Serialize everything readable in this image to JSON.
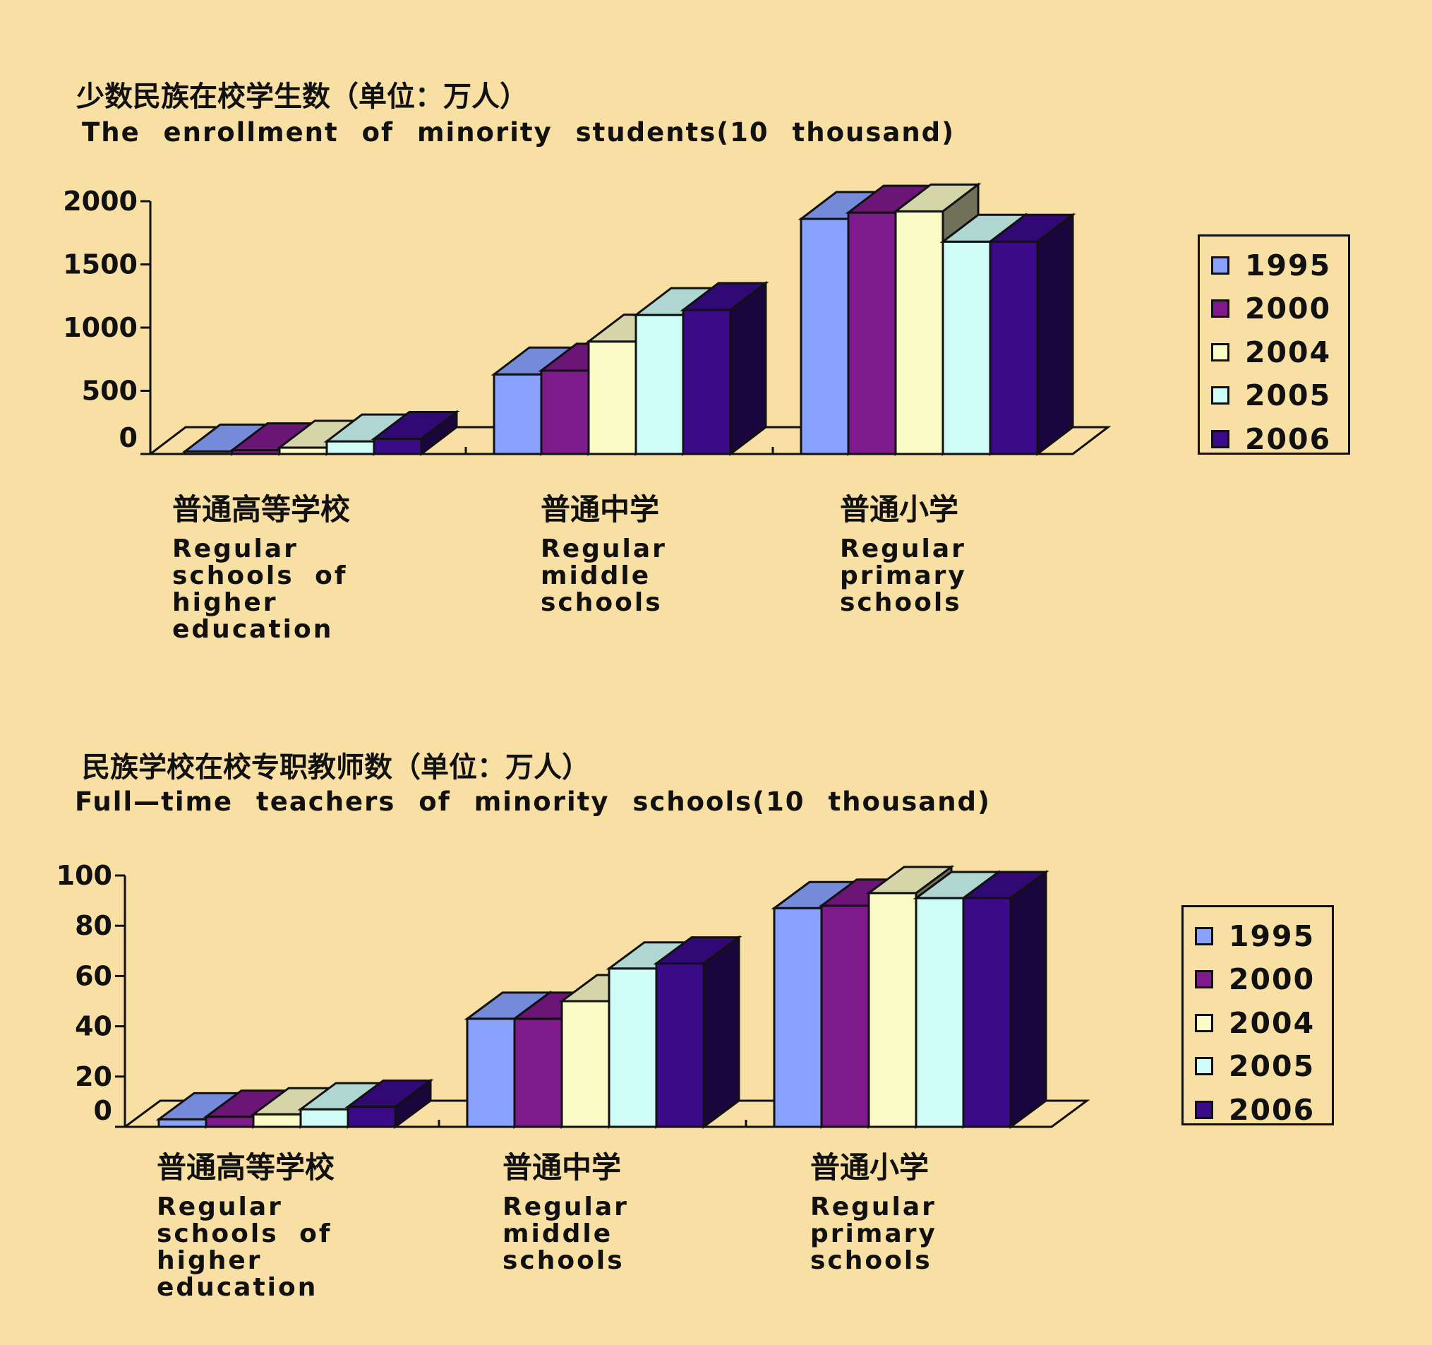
{
  "colors": {
    "background": "#F8DFA3",
    "series": [
      "#8AA2FF",
      "#7E1A8C",
      "#FBFBC8",
      "#CFFCF6",
      "#3A0A88"
    ]
  },
  "chart_data": [
    {
      "type": "bar",
      "title_cn": "少数民族在校学生数（单位：万人）",
      "title_en": "The enrollment of minority students(10 thousand)",
      "categories": [
        {
          "cn": "普通高等学校",
          "en": "Regular\nschools of\nhigher\neducation"
        },
        {
          "cn": "普通中学",
          "en": "Regular\nmiddle\nschools"
        },
        {
          "cn": "普通小学",
          "en": "Regular\nprimary\nschools"
        }
      ],
      "series": [
        {
          "name": "1995",
          "values": [
            20,
            630,
            1860
          ]
        },
        {
          "name": "2000",
          "values": [
            30,
            660,
            1910
          ]
        },
        {
          "name": "2004",
          "values": [
            50,
            890,
            1920
          ]
        },
        {
          "name": "2005",
          "values": [
            100,
            1100,
            1680
          ]
        },
        {
          "name": "2006",
          "values": [
            120,
            1140,
            1680
          ]
        }
      ],
      "yticks": [
        "0",
        "500",
        "1000",
        "1500",
        "2000"
      ],
      "ylim": [
        0,
        2000
      ],
      "legend_position": "right"
    },
    {
      "type": "bar",
      "title_cn": "民族学校在校专职教师数（单位：万人）",
      "title_en": "Full—time teachers of minority schools(10 thousand)",
      "categories": [
        {
          "cn": "普通高等学校",
          "en": "Regular\nschools of\nhigher\neducation"
        },
        {
          "cn": "普通中学",
          "en": "Regular\nmiddle\nschools"
        },
        {
          "cn": "普通小学",
          "en": "Regular\nprimary\nschools"
        }
      ],
      "series": [
        {
          "name": "1995",
          "values": [
            3,
            43,
            87
          ]
        },
        {
          "name": "2000",
          "values": [
            4,
            43,
            88
          ]
        },
        {
          "name": "2004",
          "values": [
            5,
            50,
            93
          ]
        },
        {
          "name": "2005",
          "values": [
            7,
            63,
            91
          ]
        },
        {
          "name": "2006",
          "values": [
            8,
            65,
            91
          ]
        }
      ],
      "yticks": [
        "0",
        "20",
        "40",
        "60",
        "80",
        "100"
      ],
      "ylim": [
        0,
        100
      ],
      "legend_position": "right"
    }
  ]
}
